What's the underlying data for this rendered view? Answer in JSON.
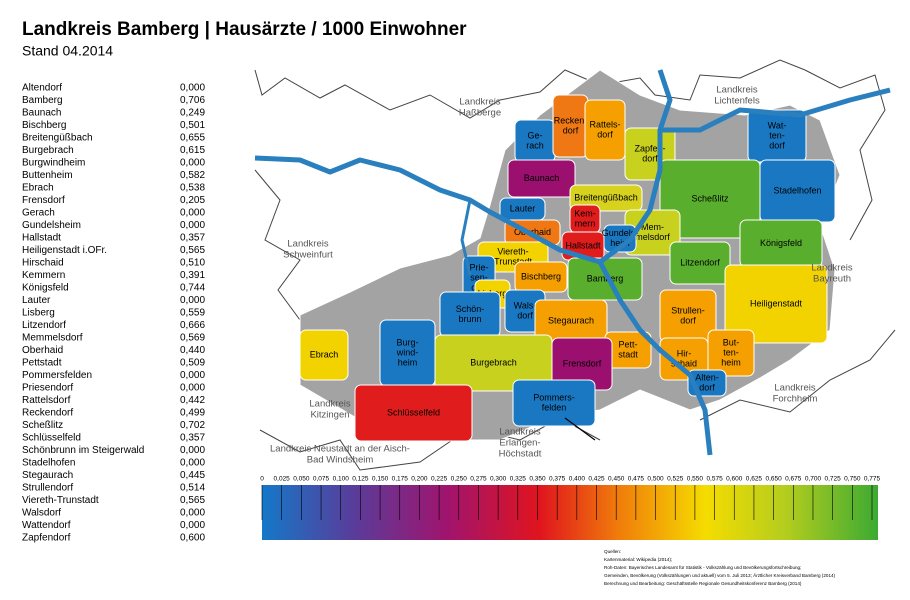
{
  "header": {
    "title": "Landkreis Bamberg  |  Hausärzte / 1000 Einwohner",
    "subtitle": "Stand 04.2014"
  },
  "table": {
    "rows": [
      [
        "Altendorf",
        "0,000"
      ],
      [
        "Bamberg",
        "0,706"
      ],
      [
        "Baunach",
        "0,249"
      ],
      [
        "Bischberg",
        "0,501"
      ],
      [
        "Breitengüßbach",
        "0,655"
      ],
      [
        "Burgebrach",
        "0,615"
      ],
      [
        "Burgwindheim",
        "0,000"
      ],
      [
        "Buttenheim",
        "0,582"
      ],
      [
        "Ebrach",
        "0,538"
      ],
      [
        "Frensdorf",
        "0,205"
      ],
      [
        "Gerach",
        "0,000"
      ],
      [
        "Gundelsheim",
        "0,000"
      ],
      [
        "Hallstadt",
        "0,357"
      ],
      [
        "Heiligenstadt i.OFr.",
        "0,565"
      ],
      [
        "Hirschaid",
        "0,510"
      ],
      [
        "Kemmern",
        "0,391"
      ],
      [
        "Königsfeld",
        "0,744"
      ],
      [
        "Lauter",
        "0,000"
      ],
      [
        "Lisberg",
        "0,559"
      ],
      [
        "Litzendorf",
        "0,666"
      ],
      [
        "Memmelsdorf",
        "0,569"
      ],
      [
        "Oberhaid",
        "0,440"
      ],
      [
        "Pettstadt",
        "0,509"
      ],
      [
        "Pommersfelden",
        "0,000"
      ],
      [
        "Priesendorf",
        "0,000"
      ],
      [
        "Rattelsdorf",
        "0,442"
      ],
      [
        "Reckendorf",
        "0,499"
      ],
      [
        "Scheßlitz",
        "0,702"
      ],
      [
        "Schlüsselfeld",
        "0,357"
      ],
      [
        "Schönbrunn im Steigerwald",
        "0,000"
      ],
      [
        "Stadelhofen",
        "0,000"
      ],
      [
        "Stegaurach",
        "0,445"
      ],
      [
        "Strullendorf",
        "0,514"
      ],
      [
        "Viereth-Trunstadt",
        "0,565"
      ],
      [
        "Walsdorf",
        "0,000"
      ],
      [
        "Wattendorf",
        "0,000"
      ],
      [
        "Zapfendorf",
        "0,600"
      ]
    ]
  },
  "map": {
    "regions": [
      [
        "Ge-",
        "rach"
      ],
      [
        "Recken-",
        "dorf"
      ],
      [
        "Rattels-",
        "dorf"
      ],
      [
        "Zapfen-",
        "dorf"
      ],
      [
        "Wat-",
        "ten-",
        "dorf"
      ],
      [
        "Baunach"
      ],
      [
        "Breitengüßbach"
      ],
      [
        "Scheßlitz"
      ],
      [
        "Stadelhofen"
      ],
      [
        "Lauter"
      ],
      [
        "Kem-",
        "mern"
      ],
      [
        "Mem-",
        "melsdorf"
      ],
      [
        "Königsfeld"
      ],
      [
        "Oberhaid"
      ],
      [
        "Hallstadt"
      ],
      [
        "Gundels-",
        "heim"
      ],
      [
        "Viereth-",
        "Trunstadt"
      ],
      [
        "Litzendorf"
      ],
      [
        "Bamberg"
      ],
      [
        "Prie-",
        "sen-",
        "dorf"
      ],
      [
        "Bischberg"
      ],
      [
        "Lisberg"
      ],
      [
        "Heiligenstadt"
      ],
      [
        "Strullen-",
        "dorf"
      ],
      [
        "Schön-",
        "brunn"
      ],
      [
        "Wals-",
        "dorf"
      ],
      [
        "Stegaurach"
      ],
      [
        "Ebrach"
      ],
      [
        "Burg-",
        "wind-",
        "heim"
      ],
      [
        "Burgebrach"
      ],
      [
        "Pett-",
        "stadt"
      ],
      [
        "Hir-",
        "schaid"
      ],
      [
        "But-",
        "ten-",
        "heim"
      ],
      [
        "Frensdorf"
      ],
      [
        "Alten-",
        "dorf"
      ],
      [
        "Schlüsselfeld"
      ],
      [
        "Pommers-",
        "felden"
      ]
    ],
    "neighbors": [
      [
        "Landkreis",
        "Haßberge"
      ],
      [
        "Landkreis",
        "Lichtenfels"
      ],
      [
        "Landkreis",
        "Schweinfurt"
      ],
      [
        "Landkreis",
        "Bayreuth"
      ],
      [
        "Landkreis",
        "Kitzingen"
      ],
      [
        "Landkreis",
        "Forchheim"
      ],
      [
        "Landkreis Neustadt an der Aisch-",
        "Bad Windsheim"
      ],
      [
        "Landkreis",
        "Erlangen-",
        "Höchstadt"
      ]
    ]
  },
  "scale": {
    "ticks": [
      "0",
      "0,025",
      "0,050",
      "0,075",
      "0,100",
      "0,125",
      "0,150",
      "0,175",
      "0,200",
      "0,225",
      "0,250",
      "0,275",
      "0,300",
      "0,325",
      "0,350",
      "0,375",
      "0,400",
      "0,425",
      "0,450",
      "0,475",
      "0,500",
      "0,525",
      "0,550",
      "0,575",
      "0,600",
      "0,625",
      "0,650",
      "0,675",
      "0,700",
      "0,725",
      "0,750",
      "0,775"
    ]
  },
  "sources": [
    "Quellen:",
    "Kartenmaterial: Wikipedia (2014);",
    "Roh-Daten: Bayerisches Landesamt für Statistik - Volkszählung und Bevölkerungsfortschreibung;",
    "Gemeinden, Bevölkerung (Volkszählungen und aktuell) vom 5. Juli 2013; Ärztlicher Kreisverband Bamberg (2014)",
    "Berechnung und Bearbeitung: Geschäftsstelle Regionale Gesundheitskonferenz Bamberg (2014)"
  ]
}
